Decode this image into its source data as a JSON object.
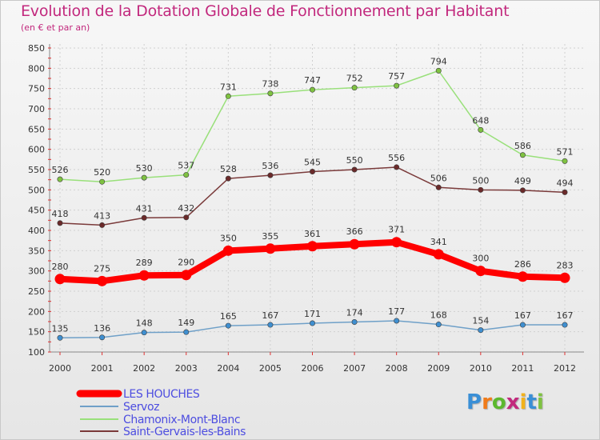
{
  "title": "Evolution de la Dotation Globale de Fonctionnement par Habitant",
  "subtitle": "(en € et par an)",
  "logo": {
    "text": "Proxiti",
    "letter_colors": [
      "#3a8fd6",
      "#f07b1a",
      "#5cb82e",
      "#c22a7d",
      "#f2b21b",
      "#3a8fd6",
      "#7fc241"
    ]
  },
  "chart_data": {
    "type": "line",
    "title": "Evolution de la Dotation Globale de Fonctionnement par Habitant",
    "subtitle": "(en € et par an)",
    "x": [
      "2000",
      "2001",
      "2002",
      "2003",
      "2004",
      "2005",
      "2006",
      "2007",
      "2008",
      "2009",
      "2010",
      "2011",
      "2012"
    ],
    "ylim": [
      100,
      850
    ],
    "yticks": [
      100,
      150,
      200,
      250,
      300,
      350,
      400,
      450,
      500,
      550,
      600,
      650,
      700,
      750,
      800,
      850
    ],
    "grid": true,
    "legend_position": "bottom-left",
    "series": [
      {
        "name": "LES HOUCHES",
        "color": "#ff0000",
        "label_color": "#4d4de0",
        "marker_color": "#ff0000",
        "emphasis": true,
        "values": [
          280,
          275,
          289,
          290,
          350,
          355,
          361,
          366,
          371,
          341,
          300,
          286,
          283
        ]
      },
      {
        "name": "Servoz",
        "color": "#6fa0c8",
        "label_color": "#4d4de0",
        "marker_color": "#3f8fd0",
        "emphasis": false,
        "values": [
          135,
          136,
          148,
          149,
          165,
          167,
          171,
          174,
          177,
          168,
          154,
          167,
          167
        ]
      },
      {
        "name": "Chamonix-Mont-Blanc",
        "color": "#99e07a",
        "label_color": "#4d4de0",
        "marker_color": "#7fc241",
        "emphasis": false,
        "values": [
          526,
          520,
          530,
          537,
          731,
          738,
          747,
          752,
          757,
          794,
          648,
          586,
          571
        ]
      },
      {
        "name": "Saint-Gervais-les-Bains",
        "color": "#7a3a3a",
        "label_color": "#4d4de0",
        "marker_color": "#6b2a2a",
        "emphasis": false,
        "values": [
          418,
          413,
          431,
          432,
          528,
          536,
          545,
          550,
          556,
          506,
          500,
          499,
          494
        ]
      }
    ]
  }
}
